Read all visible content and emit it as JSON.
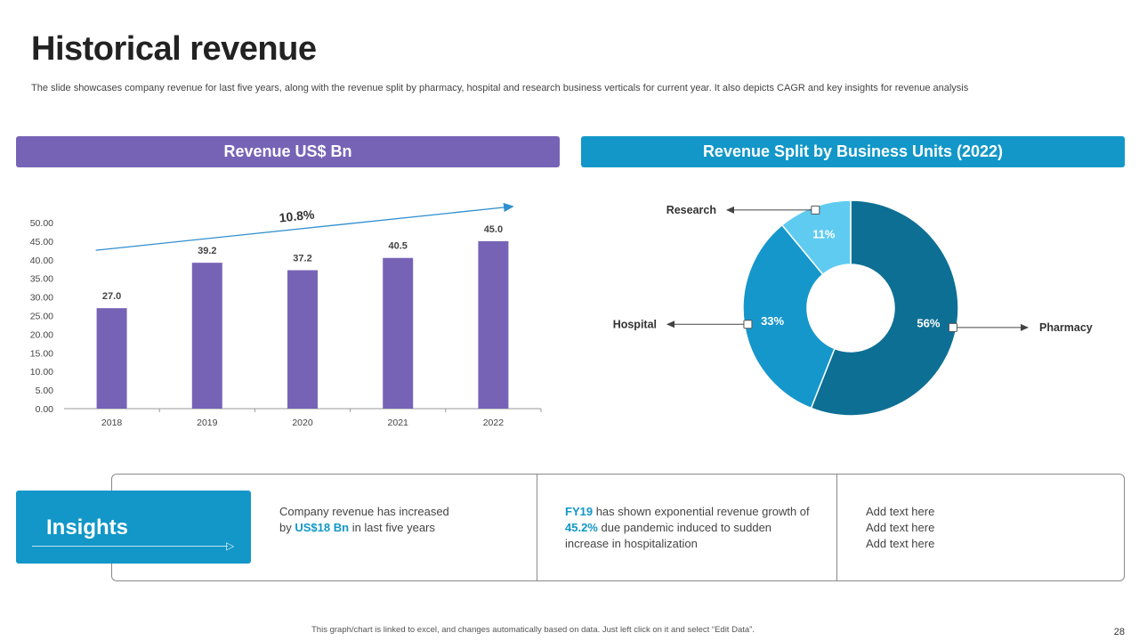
{
  "page": {
    "title": "Historical revenue",
    "subtitle": "The slide showcases company revenue for last five years, along with the revenue split by pharmacy, hospital and research business verticals for current year. It also depicts CAGR and key insights for revenue analysis",
    "footer": "This graph/chart is linked to excel, and changes automatically based on data. Just left click on it and select “Edit Data”.",
    "page_number": "28"
  },
  "colors": {
    "purple": "#7763b6",
    "blue": "#1297c8",
    "pharmacy": "#0e6f94",
    "hospital": "#1697cb",
    "research": "#5fcbf1",
    "trend": "#2e8fd0",
    "highlight": "#1297c8"
  },
  "chart_data": [
    {
      "type": "bar",
      "title": "Revenue US$ Bn",
      "categories": [
        "2018",
        "2019",
        "2020",
        "2021",
        "2022"
      ],
      "values": [
        27.0,
        39.2,
        37.2,
        40.5,
        45.0
      ],
      "value_labels": [
        "27.0",
        "39.2",
        "37.2",
        "40.5",
        "45.0"
      ],
      "yticks": [
        "0.00",
        "5.00",
        "10.00",
        "15.00",
        "20.00",
        "25.00",
        "30.00",
        "35.00",
        "40.00",
        "45.00",
        "50.00"
      ],
      "ylim": [
        0,
        50
      ],
      "xlabel": "",
      "ylabel": "",
      "grid": false,
      "annotation": "10.8%"
    },
    {
      "type": "pie",
      "title": "Revenue Split by Business Units (2022)",
      "labels": [
        "Pharmacy",
        "Hospital",
        "Research"
      ],
      "values": [
        56,
        33,
        11
      ],
      "value_labels": [
        "56%",
        "33%",
        "11%"
      ]
    }
  ],
  "insights": {
    "label": "Insights",
    "col1": {
      "pre": "Company revenue has increased by",
      "highlight": "US$18 Bn",
      "post": "in last five years"
    },
    "col2": {
      "hl1": "FY19",
      "mid": "has shown exponential revenue growth of",
      "hl2": "45.2%",
      "post": "due pandemic induced to sudden increase in hospitalization"
    },
    "col3": [
      "Add text here",
      "Add text here",
      "Add text here"
    ]
  }
}
